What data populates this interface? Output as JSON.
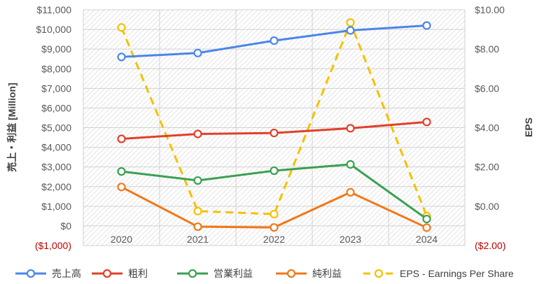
{
  "chart_data": {
    "type": "line",
    "x": [
      "2020",
      "2021",
      "2022",
      "2023",
      "2024"
    ],
    "y_left": {
      "label": "売上・利益 [Million]",
      "range": [
        -1000,
        11000
      ],
      "ticks": [
        -1000,
        0,
        1000,
        2000,
        3000,
        4000,
        5000,
        6000,
        7000,
        8000,
        9000,
        10000,
        11000
      ],
      "tick_labels": [
        "($1,000)",
        "$0",
        "$1,000",
        "$2,000",
        "$3,000",
        "$4,000",
        "$5,000",
        "$6,000",
        "$7,000",
        "$8,000",
        "$9,000",
        "$10,000",
        "$11,000"
      ]
    },
    "y_right": {
      "label": "EPS",
      "range": [
        -2,
        10
      ],
      "ticks": [
        -2,
        0,
        2,
        4,
        6,
        8,
        10
      ],
      "tick_labels": [
        "($2.00)",
        "$0.00",
        "$2.00",
        "$4.00",
        "$6.00",
        "$8.00",
        "$10.00"
      ]
    },
    "series": [
      {
        "name": "売上高",
        "axis": "left",
        "color": "#4a86e8",
        "dashed": false,
        "values": [
          8600,
          8800,
          9430,
          9950,
          10200
        ]
      },
      {
        "name": "粗利",
        "axis": "left",
        "color": "#e0402a",
        "dashed": false,
        "values": [
          4430,
          4680,
          4730,
          4970,
          5290
        ]
      },
      {
        "name": "営業利益",
        "axis": "left",
        "color": "#3ba050",
        "dashed": false,
        "values": [
          2770,
          2310,
          2810,
          3130,
          350
        ]
      },
      {
        "name": "純利益",
        "axis": "left",
        "color": "#f07818",
        "dashed": false,
        "values": [
          1980,
          -40,
          -80,
          1710,
          -90
        ]
      },
      {
        "name": "EPS - Earnings Per Share",
        "axis": "right",
        "color": "#f5c000",
        "dashed": true,
        "values": [
          9.1,
          -0.25,
          -0.4,
          9.35,
          -0.5
        ]
      }
    ],
    "legend": "bottom",
    "grid": true
  }
}
